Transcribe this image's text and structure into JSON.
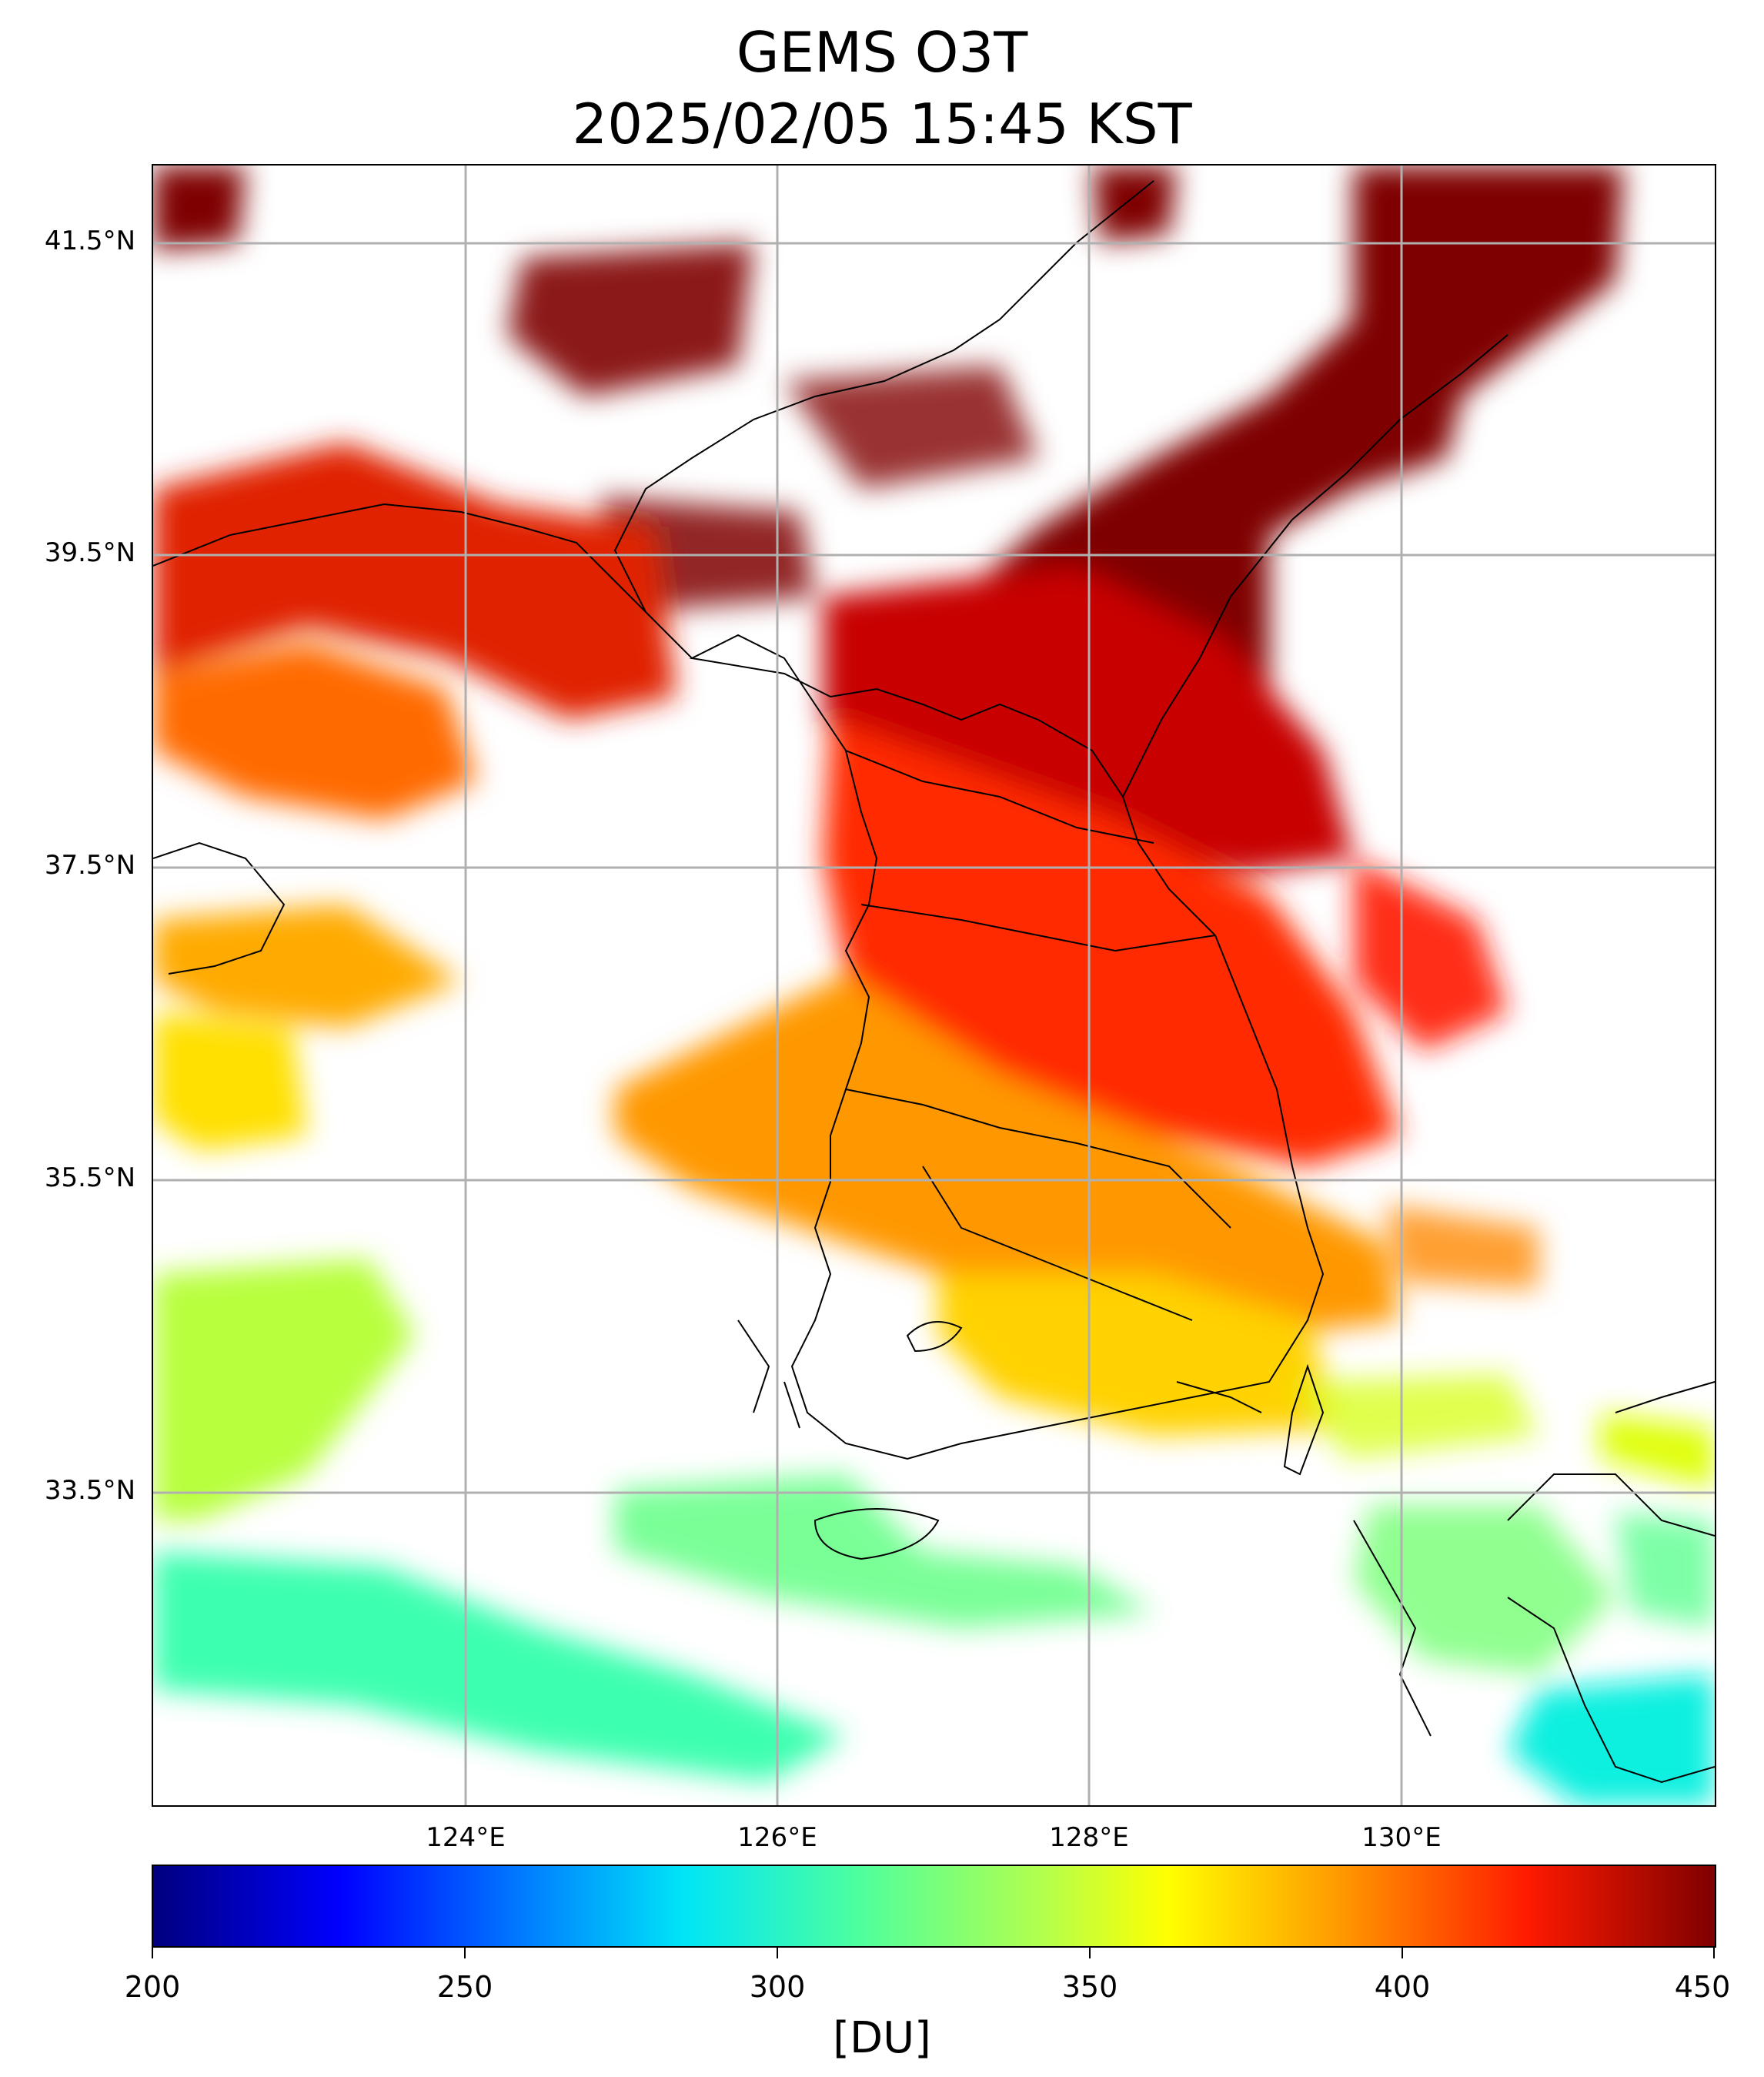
{
  "title": {
    "line1": "GEMS O3T",
    "line2": "2025/02/05 15:45 KST"
  },
  "map": {
    "latitude_labels": [
      "41.5°N",
      "39.5°N",
      "37.5°N",
      "35.5°N",
      "33.5°N"
    ],
    "longitude_labels": [
      "124°E",
      "126°E",
      "128°E",
      "130°E"
    ],
    "grid": true,
    "ozone_regions": [
      {
        "region": "northeast",
        "value_du": 450,
        "color": "#7f0000"
      },
      {
        "region": "north-central",
        "value_du": 425,
        "color": "#d80000"
      },
      {
        "region": "korean-peninsula-central",
        "value_du": 410,
        "color": "#ff3300"
      },
      {
        "region": "southwest",
        "value_du": 385,
        "color": "#ffa000"
      },
      {
        "region": "south-coast",
        "value_du": 365,
        "color": "#ffd200"
      },
      {
        "region": "southern-sea",
        "value_du": 340,
        "color": "#b8ff3c"
      },
      {
        "region": "far-south",
        "value_du": 310,
        "color": "#3cffb0"
      }
    ]
  },
  "colorbar": {
    "ticks": [
      "200",
      "250",
      "300",
      "350",
      "400",
      "450"
    ],
    "min": 200,
    "max": 450,
    "unit": "[DU]"
  }
}
